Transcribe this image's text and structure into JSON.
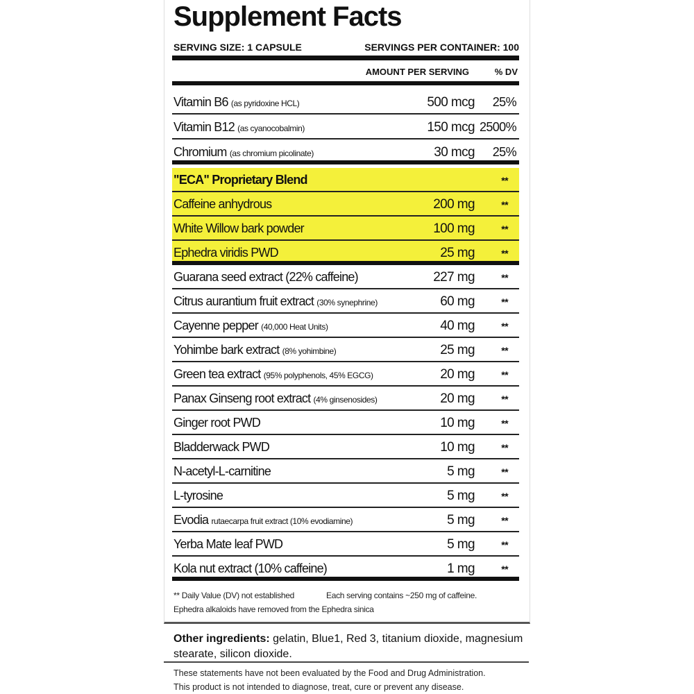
{
  "title": "Supplement Facts",
  "serving_size": "SERVING SIZE: 1 CAPSULE",
  "servings_per_container": "SERVINGS PER CONTAINER: 100",
  "column_headers": {
    "amount": "AMOUNT PER SERVING",
    "dv": "% DV"
  },
  "highlight_color": "#f4f03a",
  "vitamins": [
    {
      "name": "Vitamin B6",
      "note": "(as pyridoxine HCL)",
      "amount": "500 mcg",
      "dv": "25%"
    },
    {
      "name": "Vitamin B12",
      "note": "(as cyanocobalmin)",
      "amount": "150 mcg",
      "dv": "2500%"
    },
    {
      "name": "Chromium",
      "note": "(as chromium picolinate)",
      "amount": "30 mcg",
      "dv": "25%"
    }
  ],
  "blend": {
    "name": "\"ECA\" Proprietary Blend",
    "dv": "**",
    "items": [
      {
        "name": "Caffeine anhydrous",
        "amount": "200 mg",
        "dv": "**"
      },
      {
        "name": "White Willow bark powder",
        "amount": "100 mg",
        "dv": "**"
      },
      {
        "name": "Ephedra viridis PWD",
        "amount": "25 mg",
        "dv": "**"
      }
    ]
  },
  "ingredients": [
    {
      "name": "Guarana seed extract (22% caffeine)",
      "note": "",
      "amount": "227 mg",
      "dv": "**"
    },
    {
      "name": "Citrus aurantium fruit extract",
      "note": "(30% synephrine)",
      "amount": "60 mg",
      "dv": "**"
    },
    {
      "name": "Cayenne pepper",
      "note": "(40,000 Heat Units)",
      "amount": "40 mg",
      "dv": "**"
    },
    {
      "name": "Yohimbe bark extract",
      "note": "(8% yohimbine)",
      "amount": "25 mg",
      "dv": "**"
    },
    {
      "name": "Green tea extract",
      "note": "(95% polyphenols, 45% EGCG)",
      "amount": "20 mg",
      "dv": "**"
    },
    {
      "name": "Panax Ginseng root extract",
      "note": "(4% ginsenosides)",
      "amount": "20 mg",
      "dv": "**"
    },
    {
      "name": "Ginger root PWD",
      "note": "",
      "amount": "10 mg",
      "dv": "**"
    },
    {
      "name": "Bladderwack PWD",
      "note": "",
      "amount": "10 mg",
      "dv": "**"
    },
    {
      "name": "N-acetyl-L-carnitine",
      "note": "",
      "amount": "5 mg",
      "dv": "**"
    },
    {
      "name": "L-tyrosine",
      "note": "",
      "amount": "5 mg",
      "dv": "**"
    },
    {
      "name": "Evodia",
      "note": "rutaecarpa fruit extract (10% evodiamine)",
      "amount": "5 mg",
      "dv": "**"
    },
    {
      "name": "Yerba Mate leaf PWD",
      "note": "",
      "amount": "5 mg",
      "dv": "**"
    },
    {
      "name": "Kola nut extract (10% caffeine)",
      "note": "",
      "amount": "1 mg",
      "dv": "**"
    }
  ],
  "footnotes": {
    "dv_note": "** Daily Value (DV) not established",
    "caffeine_note": "Each serving contains ~250 mg of caffeine.",
    "ephedra_note": "Ephedra alkaloids have removed from the Ephedra sinica"
  },
  "other_ingredients": {
    "label": "Other ingredients:",
    "text": " gelatin, Blue1, Red 3, titanium dioxide, magnesium stearate, silicon dioxide."
  },
  "disclaimer": [
    "These statements have not been evaluated by the Food and Drug Administration.",
    "This product is not intended to diagnose, treat, cure or prevent any disease."
  ]
}
